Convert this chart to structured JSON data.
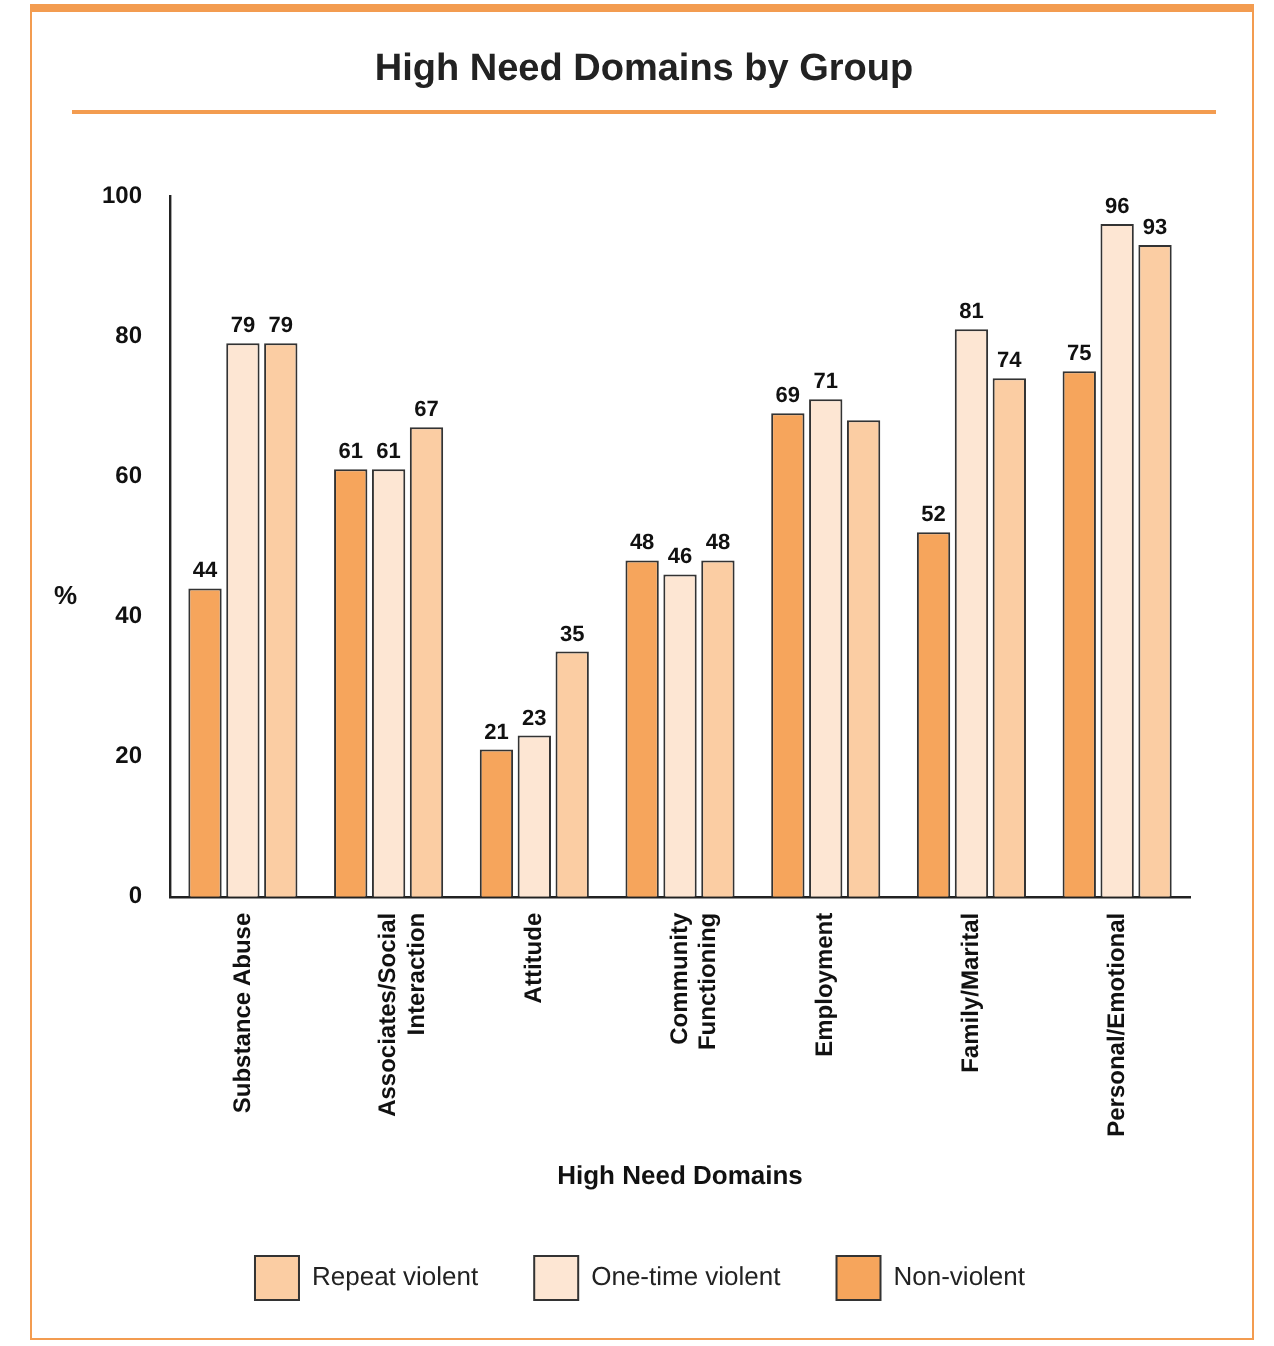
{
  "chart_data": {
    "type": "bar",
    "title": "High Need Domains by Group",
    "xlabel": "High Need Domains",
    "ylabel": "%",
    "categories": [
      "Substance Abuse",
      "Associates/Social Interaction",
      "Attitude",
      "Community Functioning",
      "Employment",
      "Family/Marital",
      "Personal/Emotional"
    ],
    "series": [
      {
        "name": "Non-violent",
        "color": "#f6a55c",
        "values": [
          44,
          61,
          21,
          48,
          69,
          52,
          75
        ],
        "value_labels": [
          "44",
          "61",
          "21",
          "48",
          "69",
          "52",
          "75"
        ]
      },
      {
        "name": "One-time violent",
        "color": "#fde6d3",
        "values": [
          79,
          61,
          23,
          46,
          71,
          81,
          96
        ],
        "value_labels": [
          "79",
          "61",
          "23",
          "46",
          "71",
          "81",
          "96"
        ]
      },
      {
        "name": "Repeat violent",
        "color": "#fbcda3",
        "values": [
          79,
          67,
          35,
          48,
          68,
          74,
          93
        ],
        "value_labels": [
          "79",
          "67",
          "35",
          "48",
          null,
          "74",
          "93"
        ]
      }
    ],
    "ylim": [
      0,
      100
    ],
    "yticks": [
      0,
      20,
      40,
      60,
      80,
      100
    ],
    "grid": false,
    "legend": "bottom"
  }
}
